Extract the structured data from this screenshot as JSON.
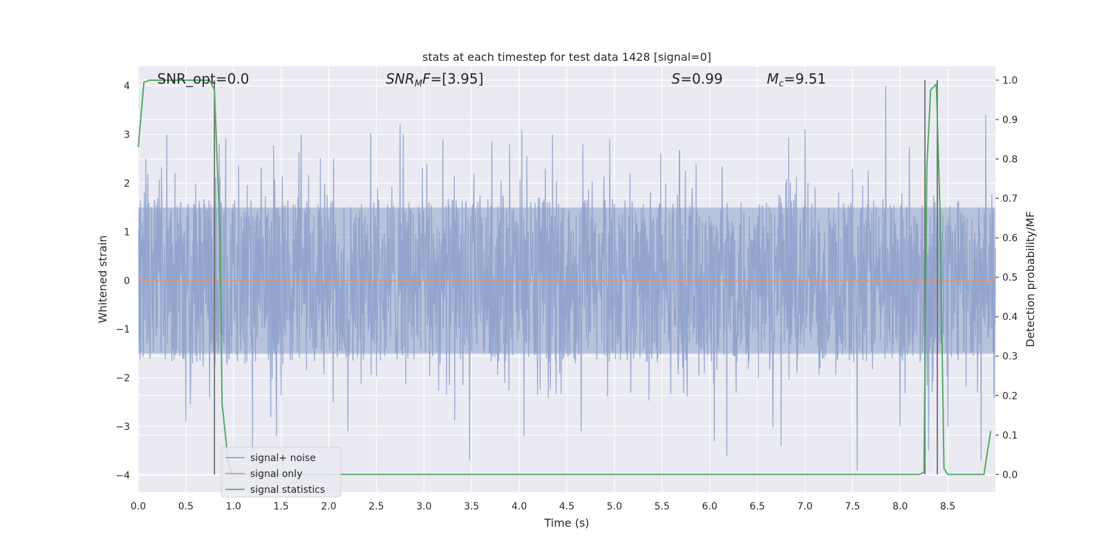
{
  "chart_data": {
    "type": "line",
    "title": "stats at each timestep for test data 1428 [signal=0]",
    "xlabel": "Time (s)",
    "ylabel": "Whitened strain",
    "y2label": "Detection probability/MF",
    "xlim": [
      0.0,
      9.0
    ],
    "ylim": [
      -4.35,
      4.4
    ],
    "y2lim": [
      -0.045,
      1.035
    ],
    "xticks": [
      0.0,
      0.5,
      1.0,
      1.5,
      2.0,
      2.5,
      3.0,
      3.5,
      4.0,
      4.5,
      5.0,
      5.5,
      6.0,
      6.5,
      7.0,
      7.5,
      8.0,
      8.5
    ],
    "xtick_labels": [
      "0.0",
      "0.5",
      "1.0",
      "1.5",
      "2.0",
      "2.5",
      "3.0",
      "3.5",
      "4.0",
      "4.5",
      "5.0",
      "5.5",
      "6.0",
      "6.5",
      "7.0",
      "7.5",
      "8.0",
      "8.5"
    ],
    "yticks": [
      -4,
      -3,
      -2,
      -1,
      0,
      1,
      2,
      3,
      4
    ],
    "ytick_labels": [
      "−4",
      "−3",
      "−2",
      "−1",
      "0",
      "1",
      "2",
      "3",
      "4"
    ],
    "y2ticks": [
      0.0,
      0.1,
      0.2,
      0.3,
      0.4,
      0.5,
      0.6,
      0.7,
      0.8,
      0.9,
      1.0
    ],
    "y2tick_labels": [
      "0.0",
      "0.1",
      "0.2",
      "0.3",
      "0.4",
      "0.5",
      "0.6",
      "0.7",
      "0.8",
      "0.9",
      "1.0"
    ],
    "grid": true,
    "legend_position": "lower-left",
    "annotations": [
      {
        "text": "SNR_opt=0.0",
        "x": 0.2
      },
      {
        "text": "SNR_MF=[3.95]",
        "x": 2.6
      },
      {
        "text": "S=0.99",
        "x": 5.6
      },
      {
        "text": "M_c=9.51",
        "x": 6.6
      }
    ],
    "series": [
      {
        "name": "signal+ noise",
        "color": "#8da0cb",
        "kind": "noise",
        "amplitude_typical": 2.4,
        "amplitude_max": 4.0,
        "peaks": [
          {
            "x": 0.08,
            "y": 2.5
          },
          {
            "x": 0.3,
            "y": 3.0
          },
          {
            "x": 0.5,
            "y": -2.9
          },
          {
            "x": 0.85,
            "y": 2.8
          },
          {
            "x": 1.2,
            "y": -3.6
          },
          {
            "x": 1.45,
            "y": -3.2
          },
          {
            "x": 2.05,
            "y": 2.5
          },
          {
            "x": 2.2,
            "y": -3.1
          },
          {
            "x": 2.75,
            "y": 3.2
          },
          {
            "x": 3.2,
            "y": 2.9
          },
          {
            "x": 3.48,
            "y": -3.7
          },
          {
            "x": 3.9,
            "y": 2.8
          },
          {
            "x": 4.05,
            "y": -3.2
          },
          {
            "x": 4.35,
            "y": 3.0
          },
          {
            "x": 4.65,
            "y": -3.1
          },
          {
            "x": 4.95,
            "y": 2.9
          },
          {
            "x": 6.05,
            "y": -3.3
          },
          {
            "x": 6.18,
            "y": -3.6
          },
          {
            "x": 6.75,
            "y": -3.4
          },
          {
            "x": 7.0,
            "y": 3.1
          },
          {
            "x": 7.55,
            "y": -3.9
          },
          {
            "x": 7.85,
            "y": 4.0
          },
          {
            "x": 8.0,
            "y": -3.0
          },
          {
            "x": 8.3,
            "y": -3.5
          },
          {
            "x": 8.85,
            "y": -3.7
          },
          {
            "x": 8.9,
            "y": 3.4
          }
        ]
      },
      {
        "name": "signal only",
        "color": "#e1957a",
        "x": [
          0.0,
          9.0
        ],
        "y": [
          0.0,
          0.0
        ]
      },
      {
        "name": "signal statistics",
        "color": "#55a868",
        "axis": "right",
        "x": [
          0.0,
          0.06,
          0.12,
          0.2,
          0.4,
          0.6,
          0.75,
          0.8,
          0.86,
          0.88,
          0.95,
          1.0,
          8.2,
          8.25,
          8.28,
          8.32,
          8.38,
          8.42,
          8.46,
          8.5,
          8.88,
          8.95
        ],
        "y": [
          0.83,
          0.995,
          1.0,
          1.0,
          1.0,
          1.0,
          1.0,
          0.975,
          0.6,
          0.18,
          0.02,
          0.0,
          0.0,
          0.005,
          0.78,
          0.975,
          0.99,
          0.65,
          0.015,
          0.0,
          0.0,
          0.11
        ]
      }
    ],
    "vertical_lines": [
      {
        "x": 0.8,
        "color": "#6e6e6e"
      },
      {
        "x": 8.26,
        "color": "#6e6e6e"
      },
      {
        "x": 8.39,
        "color": "#6e6e6e"
      }
    ]
  }
}
